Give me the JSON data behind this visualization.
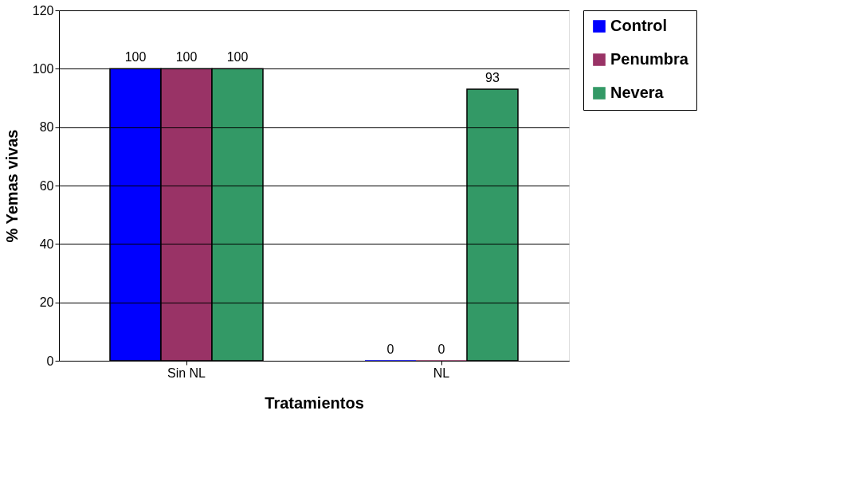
{
  "chart_data": {
    "type": "bar",
    "xlabel": "Tratamientos",
    "ylabel": "% Yemas vivas",
    "categories": [
      "Sin NL",
      "NL"
    ],
    "series": [
      {
        "name": "Control",
        "color": "#0000ff",
        "values": [
          100,
          0
        ]
      },
      {
        "name": "Penumbra",
        "color": "#993366",
        "values": [
          100,
          0
        ]
      },
      {
        "name": "Nevera",
        "color": "#339966",
        "values": [
          100,
          93
        ]
      }
    ],
    "ylim": [
      0,
      120
    ],
    "yticks": [
      0,
      20,
      40,
      60,
      80,
      100,
      120
    ],
    "grid": "y",
    "legend": "right",
    "data_labels": true
  }
}
